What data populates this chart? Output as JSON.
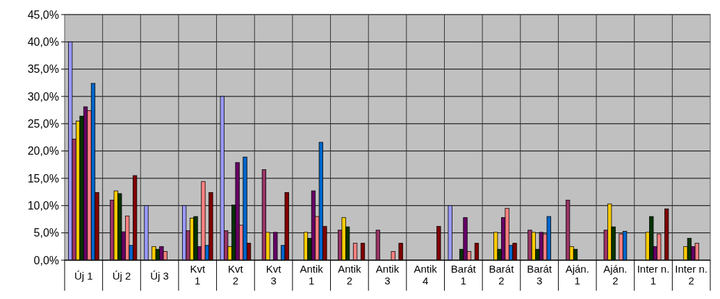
{
  "chart_data": {
    "type": "bar",
    "categories": [
      "Új 1",
      "Új 2",
      "Új 3",
      "Kvt 1",
      "Kvt 2",
      "Kvt 3",
      "Antik 1",
      "Antik 2",
      "Antik 3",
      "Antik 4",
      "Barát 1",
      "Barát 2",
      "Barát 3",
      "Aján. 1",
      "Aján. 2",
      "Inter n. 1",
      "Inter n. 2"
    ],
    "series": [
      {
        "color": "#9999ff",
        "values": [
          40,
          0,
          10,
          10,
          30,
          0,
          0,
          0,
          0,
          0,
          10,
          0,
          0,
          0,
          0,
          0,
          0
        ]
      },
      {
        "color": "#993366",
        "values": [
          22.2,
          11.0,
          0,
          5.4,
          5.4,
          16.6,
          0,
          5.5,
          5.5,
          0,
          0,
          0,
          5.5,
          11.0,
          5.5,
          0,
          0
        ]
      },
      {
        "color": "#ffcc00",
        "values": [
          25.5,
          12.7,
          2.5,
          7.7,
          2.5,
          5.1,
          5.1,
          7.8,
          0,
          0,
          0,
          5.1,
          5.1,
          2.5,
          10.3,
          5.1,
          2.5
        ]
      },
      {
        "color": "#003300",
        "values": [
          26.4,
          12.2,
          2.0,
          8.0,
          10.1,
          0,
          4.0,
          6.1,
          0,
          0,
          2.0,
          2.0,
          2.0,
          2.0,
          6.1,
          8.0,
          4.0
        ]
      },
      {
        "color": "#660066",
        "values": [
          28.1,
          5.2,
          2.5,
          2.5,
          17.9,
          5.1,
          12.7,
          0,
          0,
          0,
          7.8,
          7.8,
          5.1,
          0,
          0,
          2.5,
          2.5
        ]
      },
      {
        "color": "#ff8080",
        "values": [
          27.4,
          8.1,
          1.6,
          14.4,
          6.4,
          0,
          8.0,
          3.1,
          1.6,
          0,
          1.6,
          9.5,
          4.8,
          0,
          4.8,
          4.8,
          3.1
        ]
      },
      {
        "color": "#0066cc",
        "values": [
          32.4,
          2.7,
          0,
          2.7,
          18.9,
          2.7,
          21.6,
          0,
          0,
          0,
          0,
          2.7,
          8.0,
          0,
          5.3,
          0,
          null
        ]
      },
      {
        "color": "#800000",
        "values": [
          12.4,
          15.5,
          0,
          12.4,
          3.1,
          12.4,
          6.2,
          3.1,
          3.1,
          6.2,
          3.1,
          3.1,
          0,
          0,
          0,
          9.4,
          null
        ]
      }
    ],
    "ylim": [
      0,
      45
    ],
    "yticks": [
      {
        "value": 0,
        "label": "0,0%"
      },
      {
        "value": 5,
        "label": "5,0%"
      },
      {
        "value": 10,
        "label": "10,0%"
      },
      {
        "value": 15,
        "label": "15,0%"
      },
      {
        "value": 20,
        "label": "20,0%"
      },
      {
        "value": 25,
        "label": "25,0%"
      },
      {
        "value": 30,
        "label": "30,0%"
      },
      {
        "value": 35,
        "label": "35,0%"
      },
      {
        "value": 40,
        "label": "40,0%"
      },
      {
        "value": 45,
        "label": "45,0%"
      }
    ],
    "grid": true
  }
}
